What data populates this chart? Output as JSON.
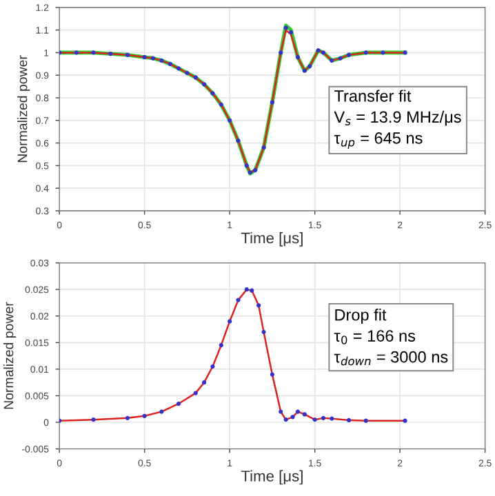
{
  "chart_data": [
    {
      "type": "line",
      "xlabel": "Time [μs]",
      "ylabel": "Normalized power",
      "annotations": [
        "Transfer fit",
        "V$_{s}$ = 13.9 MHz/μs",
        "τ$_{up}$ = 645 ns"
      ],
      "xlim": [
        0,
        2.5
      ],
      "xticks": [
        0,
        0.5,
        1,
        1.5,
        2,
        2.5
      ],
      "ylim": [
        0.3,
        1.2
      ],
      "yticks": [
        0.3,
        0.4,
        0.5,
        0.6,
        0.7,
        0.8,
        0.9,
        1,
        1.1,
        1.2
      ],
      "grid": true,
      "x": [
        0,
        0.1,
        0.2,
        0.3,
        0.4,
        0.5,
        0.55,
        0.6,
        0.65,
        0.7,
        0.75,
        0.8,
        0.85,
        0.9,
        0.95,
        1.0,
        1.05,
        1.1,
        1.12,
        1.15,
        1.2,
        1.25,
        1.3,
        1.33,
        1.36,
        1.4,
        1.44,
        1.47,
        1.52,
        1.55,
        1.6,
        1.65,
        1.7,
        1.8,
        1.9,
        2.03
      ],
      "series": [
        {
          "type": "scatter",
          "marker": "circle",
          "color": "#3333cc",
          "values": [
            1.0,
            1.0,
            1.0,
            0.995,
            0.99,
            0.98,
            0.975,
            0.965,
            0.95,
            0.93,
            0.91,
            0.89,
            0.86,
            0.82,
            0.77,
            0.7,
            0.61,
            0.5,
            0.47,
            0.48,
            0.58,
            0.78,
            1.0,
            1.11,
            1.09,
            0.98,
            0.92,
            0.94,
            1.01,
            1.0,
            0.965,
            0.975,
            0.99,
            1.0,
            1.0,
            1.0
          ]
        },
        {
          "color": "#dd2222",
          "values": [
            1.0,
            1.0,
            1.0,
            0.995,
            0.99,
            0.98,
            0.975,
            0.965,
            0.95,
            0.93,
            0.91,
            0.89,
            0.86,
            0.82,
            0.77,
            0.7,
            0.61,
            0.5,
            0.47,
            0.48,
            0.58,
            0.78,
            1.0,
            1.1,
            1.08,
            0.98,
            0.92,
            0.94,
            1.01,
            1.0,
            0.965,
            0.975,
            0.99,
            1.0,
            1.0,
            1.0
          ]
        },
        {
          "color": "#33cc33",
          "values": [
            1.0,
            1.0,
            1.0,
            0.995,
            0.99,
            0.98,
            0.975,
            0.965,
            0.95,
            0.93,
            0.91,
            0.89,
            0.86,
            0.82,
            0.77,
            0.7,
            0.61,
            0.5,
            0.465,
            0.48,
            0.58,
            0.78,
            1.0,
            1.12,
            1.1,
            0.98,
            0.92,
            0.94,
            1.01,
            1.0,
            0.965,
            0.975,
            0.99,
            1.0,
            1.0,
            1.0
          ]
        }
      ]
    },
    {
      "type": "line",
      "xlabel": "Time [μs]",
      "ylabel": "Normalized power",
      "annotations": [
        "Drop fit",
        "τ$_{0}$ = 166 ns",
        "τ$_{down}$ = 3000 ns"
      ],
      "xlim": [
        0,
        2.5
      ],
      "xticks": [
        0,
        0.5,
        1,
        1.5,
        2,
        2.5
      ],
      "ylim": [
        -0.005,
        0.03
      ],
      "yticks": [
        -0.005,
        0,
        0.005,
        0.01,
        0.015,
        0.02,
        0.025,
        0.03
      ],
      "grid": true,
      "x": [
        0,
        0.2,
        0.4,
        0.5,
        0.6,
        0.7,
        0.8,
        0.85,
        0.9,
        0.95,
        1.0,
        1.05,
        1.1,
        1.13,
        1.17,
        1.2,
        1.25,
        1.3,
        1.33,
        1.37,
        1.4,
        1.44,
        1.5,
        1.55,
        1.6,
        1.7,
        1.8,
        2.03
      ],
      "series": [
        {
          "type": "scatter",
          "marker": "circle",
          "color": "#3333cc",
          "values": [
            0.0003,
            0.0005,
            0.0008,
            0.0012,
            0.002,
            0.0035,
            0.0055,
            0.0075,
            0.0105,
            0.0145,
            0.019,
            0.023,
            0.025,
            0.0248,
            0.022,
            0.017,
            0.009,
            0.002,
            0.0005,
            0.001,
            0.002,
            0.0015,
            0.0005,
            0.0008,
            0.0007,
            0.0004,
            0.0003,
            0.0003
          ]
        },
        {
          "color": "#dd2222",
          "values": [
            0.0003,
            0.0005,
            0.0008,
            0.0012,
            0.002,
            0.0035,
            0.0055,
            0.0075,
            0.0105,
            0.0145,
            0.019,
            0.023,
            0.025,
            0.0248,
            0.022,
            0.017,
            0.009,
            0.002,
            0.0005,
            0.001,
            0.002,
            0.0015,
            0.0005,
            0.0008,
            0.0007,
            0.0004,
            0.0003,
            0.0003
          ]
        }
      ]
    }
  ]
}
